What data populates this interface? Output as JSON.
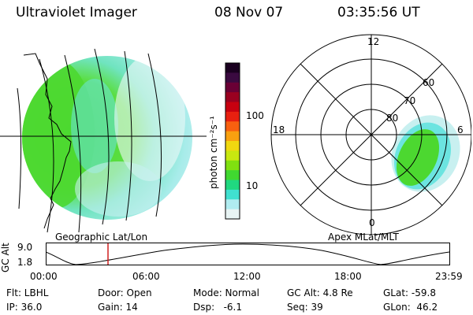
{
  "header": {
    "title": "Ultraviolet Imager",
    "date": "08 Nov 07",
    "time": "03:35:56 UT"
  },
  "colorbar": {
    "axis_label": "photon cm⁻²s⁻¹",
    "tick_labels": [
      "100",
      "10"
    ],
    "colors": [
      "#1a0020",
      "#3a0a40",
      "#6a0035",
      "#9a0020",
      "#c80010",
      "#e82010",
      "#f86010",
      "#f8a010",
      "#f0d810",
      "#c8e810",
      "#80e010",
      "#40d830",
      "#20d880",
      "#40e0d0",
      "#b0ecf0",
      "#e8f4f4"
    ]
  },
  "left_map": {
    "label": "Geographic Lat/Lon"
  },
  "polar_plot": {
    "label": "Apex MLat/MLT",
    "mlt_labels": {
      "top": "12",
      "right": "6",
      "bottom": "0",
      "left": "18"
    },
    "lat_labels": [
      "60",
      "70",
      "80"
    ]
  },
  "altitude_strip": {
    "axis_label": "GC Alt",
    "y_ticks": [
      "9.0",
      "1.8"
    ],
    "x_ticks": [
      "00:00",
      "06:00",
      "12:00",
      "18:00",
      "23:59"
    ]
  },
  "info": {
    "flt": "Flt: LBHL",
    "door": "Door: Open",
    "mode": "Mode: Normal",
    "gc_alt": "GC Alt: 4.8 Re",
    "glat": "GLat: -59.8",
    "ip": "IP: 36.0",
    "gain": "Gain: 14",
    "dsp": "Dsp:   -6.1",
    "seq": "Seq: 39",
    "glon": "GLon:  46.2"
  },
  "colors": {
    "green": "#4cd830",
    "cyan": "#6ce4e0",
    "light_cyan": "#c8f0f0",
    "marker": "#d02020"
  }
}
